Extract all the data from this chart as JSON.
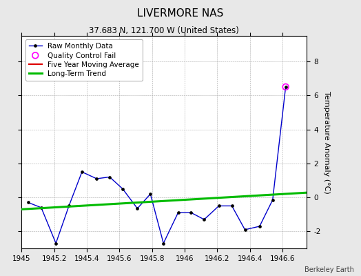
{
  "title": "LIVERMORE NAS",
  "subtitle": "37.683 N, 121.700 W (United States)",
  "ylabel": "Temperature Anomaly (°C)",
  "credit": "Berkeley Earth",
  "xlim": [
    1945.0,
    1946.75
  ],
  "ylim": [
    -3.0,
    9.5
  ],
  "yticks": [
    -2,
    0,
    2,
    4,
    6,
    8
  ],
  "xticks": [
    1945,
    1945.2,
    1945.4,
    1945.6,
    1945.8,
    1946,
    1946.2,
    1946.4,
    1946.6
  ],
  "raw_x": [
    1945.04,
    1945.12,
    1945.21,
    1945.29,
    1945.37,
    1945.46,
    1945.54,
    1945.62,
    1945.71,
    1945.79,
    1945.87,
    1945.96,
    1946.04,
    1946.12,
    1946.21,
    1946.29,
    1946.37,
    1946.46,
    1946.54,
    1946.62
  ],
  "raw_y": [
    -0.3,
    -0.6,
    -2.7,
    -0.5,
    1.5,
    1.1,
    1.2,
    0.5,
    -0.65,
    0.2,
    -2.7,
    -0.9,
    -0.9,
    -1.3,
    -0.5,
    -0.5,
    -1.9,
    -1.7,
    -0.15,
    6.5
  ],
  "qc_fail_x": [
    1946.62
  ],
  "qc_fail_y": [
    6.5
  ],
  "trend_x": [
    1945.0,
    1946.75
  ],
  "trend_y": [
    -0.7,
    0.28
  ],
  "background_color": "#e8e8e8",
  "plot_bg_color": "#ffffff",
  "raw_line_color": "#0000cc",
  "raw_marker_color": "#000000",
  "qc_color": "#ff00ff",
  "trend_color": "#00bb00",
  "mavg_color": "#dd0000",
  "title_fontsize": 11,
  "subtitle_fontsize": 8.5,
  "ylabel_fontsize": 8,
  "tick_fontsize": 7.5,
  "legend_fontsize": 7.5,
  "credit_fontsize": 7
}
